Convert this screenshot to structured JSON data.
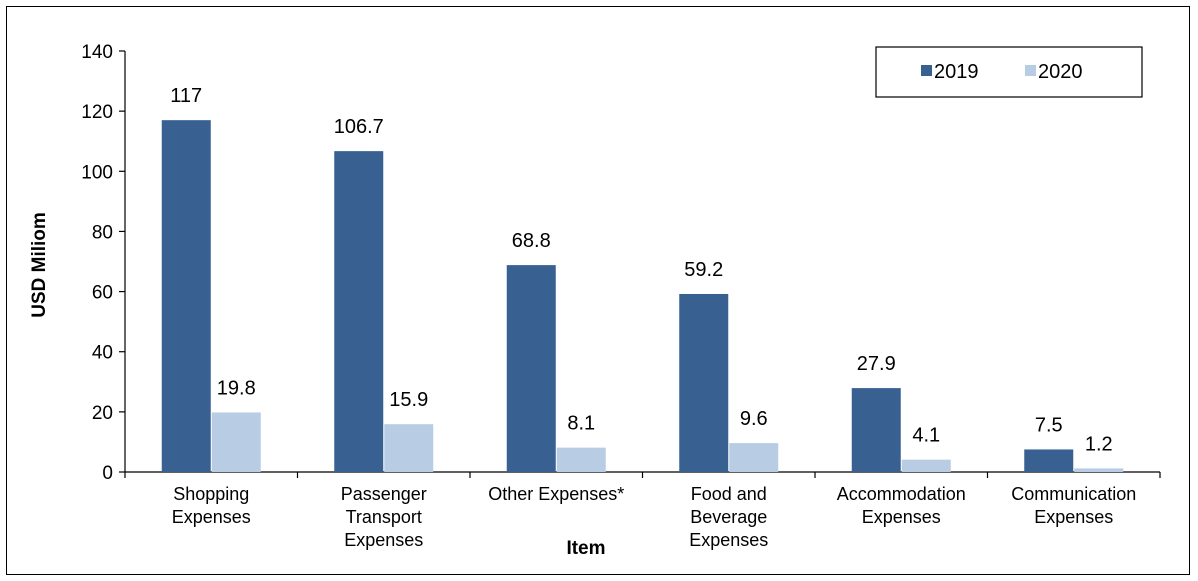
{
  "chart_data": {
    "type": "bar",
    "title": "",
    "xlabel": "Item",
    "ylabel": "USD Miliom",
    "ylim": [
      0,
      140
    ],
    "yticks": [
      0,
      20,
      40,
      60,
      80,
      100,
      120,
      140
    ],
    "grid": false,
    "legend_position": "top-right",
    "categories": [
      [
        "Shopping",
        "Expenses"
      ],
      [
        "Passenger",
        "Transport",
        "Expenses"
      ],
      [
        "Other Expenses*"
      ],
      [
        "Food and",
        "Beverage",
        "Expenses"
      ],
      [
        "Accommodation",
        "Expenses"
      ],
      [
        "Communication",
        "Expenses"
      ]
    ],
    "series": [
      {
        "name": "2019",
        "color": "#386192",
        "values": [
          117,
          106.7,
          68.8,
          59.2,
          27.9,
          7.5
        ]
      },
      {
        "name": "2020",
        "color": "#b8cce4",
        "values": [
          19.8,
          15.9,
          8.1,
          9.6,
          4.1,
          1.2
        ]
      }
    ]
  }
}
